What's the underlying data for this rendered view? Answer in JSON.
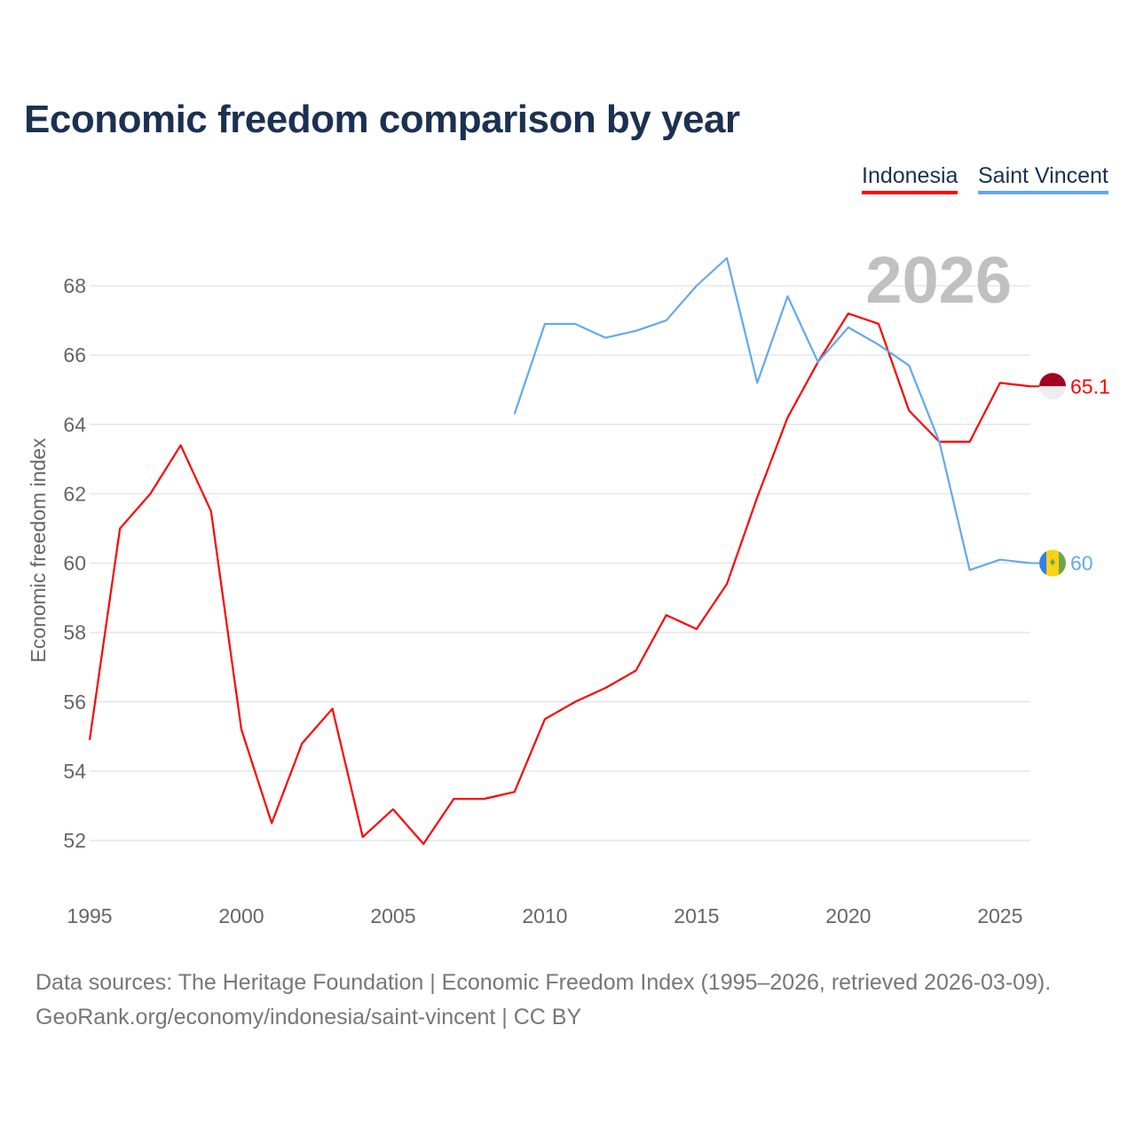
{
  "title": "Economic freedom comparison by year",
  "legend": [
    {
      "label": "Indonesia",
      "color": "#ff0000"
    },
    {
      "label": "Saint Vincent",
      "color": "#63a9ec"
    }
  ],
  "source": {
    "line1": "Data sources: The Heritage Foundation | Economic Freedom Index (1995–2026, retrieved 2026-03-09).",
    "line2": "GeoRank.org/economy/indonesia/saint-vincent | CC BY"
  },
  "chart_data": {
    "type": "line",
    "title": "Economic freedom comparison by year",
    "xlabel": "",
    "ylabel": "Economic freedom index",
    "year_watermark": "2026",
    "xlim": [
      1995,
      2026
    ],
    "ylim": [
      52,
      68
    ],
    "xticks": [
      "1995",
      "2000",
      "2005",
      "2010",
      "2015",
      "2020",
      "2025"
    ],
    "yticks": [
      "52",
      "54",
      "56",
      "58",
      "60",
      "62",
      "64",
      "66",
      "68"
    ],
    "series": [
      {
        "name": "Indonesia",
        "color": "#ff0000",
        "end_label": "65.1",
        "x": [
          1995,
          1996,
          1997,
          1998,
          1999,
          2000,
          2001,
          2002,
          2003,
          2004,
          2005,
          2006,
          2007,
          2008,
          2009,
          2010,
          2011,
          2012,
          2013,
          2014,
          2015,
          2016,
          2017,
          2018,
          2019,
          2020,
          2021,
          2022,
          2023,
          2024,
          2025,
          2026
        ],
        "values": [
          54.9,
          61.0,
          62.0,
          63.4,
          61.5,
          55.2,
          52.5,
          54.8,
          55.8,
          52.1,
          52.9,
          51.9,
          53.2,
          53.2,
          53.4,
          55.5,
          56.0,
          56.4,
          56.9,
          58.5,
          58.1,
          59.4,
          61.9,
          64.2,
          65.8,
          67.2,
          66.9,
          64.4,
          63.5,
          63.5,
          65.2,
          65.1
        ]
      },
      {
        "name": "Saint Vincent",
        "color": "#63a9ec",
        "end_label": "60",
        "x": [
          2009,
          2010,
          2011,
          2012,
          2013,
          2014,
          2015,
          2016,
          2017,
          2018,
          2019,
          2020,
          2021,
          2022,
          2023,
          2024,
          2025,
          2026
        ],
        "values": [
          64.3,
          66.9,
          66.9,
          66.5,
          66.7,
          67.0,
          68.0,
          68.8,
          65.2,
          67.7,
          65.8,
          66.8,
          66.3,
          65.7,
          63.5,
          59.8,
          60.1,
          60.0
        ]
      }
    ]
  }
}
